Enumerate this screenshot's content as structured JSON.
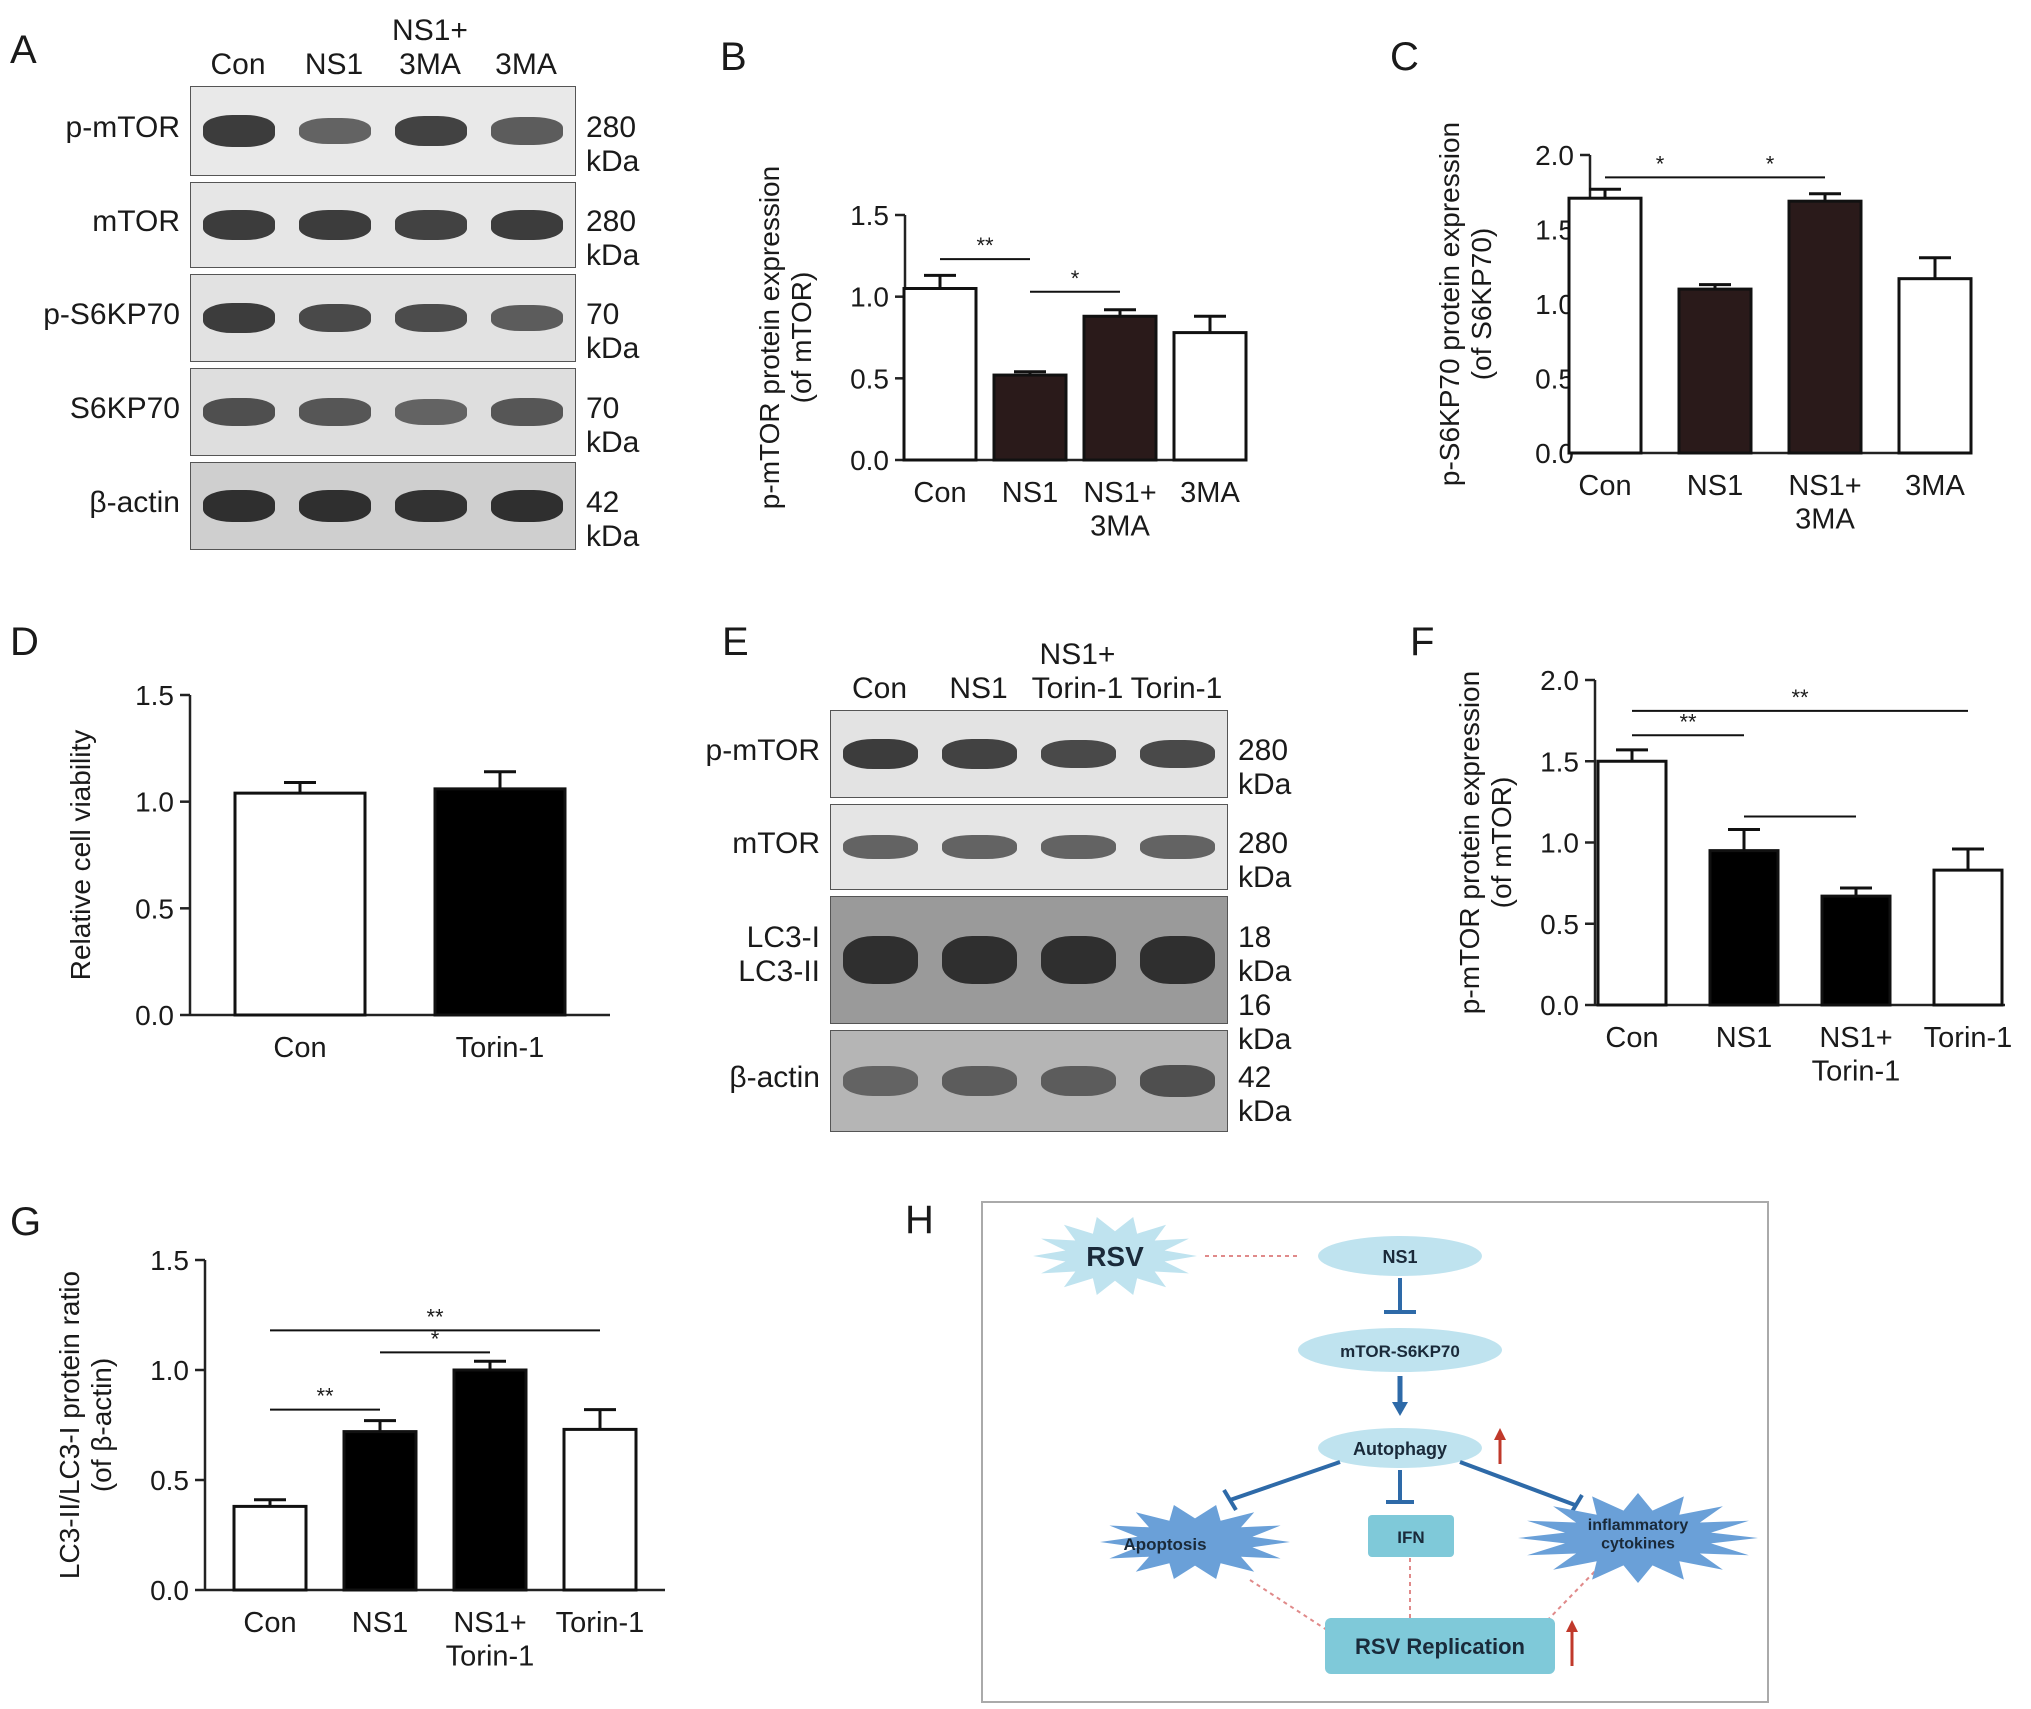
{
  "panels": {
    "A": {
      "label": "A",
      "lanes": [
        "Con",
        "NS1",
        "NS1+\n3MA",
        "3MA"
      ],
      "rows": [
        {
          "name": "p-mTOR",
          "kda": "280 kDa",
          "intensities": [
            0.85,
            0.55,
            0.8,
            0.6
          ],
          "bg": "#e9e9e9"
        },
        {
          "name": "mTOR",
          "kda": "280 kDa",
          "intensities": [
            0.85,
            0.85,
            0.8,
            0.85
          ],
          "bg": "#e6e6e6"
        },
        {
          "name": "p-S6KP70",
          "kda": "70 kDa",
          "intensities": [
            0.85,
            0.75,
            0.72,
            0.6
          ],
          "bg": "#e2e2e2"
        },
        {
          "name": "S6KP70",
          "kda": "70 kDa",
          "intensities": [
            0.7,
            0.65,
            0.55,
            0.65
          ],
          "bg": "#dedede"
        },
        {
          "name": "β-actin",
          "kda": "42 kDa",
          "intensities": [
            0.95,
            0.95,
            0.92,
            0.95
          ],
          "bg": "#cfcfcf"
        }
      ]
    },
    "E": {
      "label": "E",
      "lanes": [
        "Con",
        "NS1",
        "NS1+\nTorin-1",
        "Torin-1"
      ],
      "rows": [
        {
          "name": "p-mTOR",
          "kda": "280 kDa",
          "intensities": [
            0.85,
            0.8,
            0.75,
            0.75
          ],
          "bg": "#e3e3e3"
        },
        {
          "name": "mTOR",
          "kda": "280 kDa",
          "intensities": [
            0.55,
            0.55,
            0.55,
            0.55
          ],
          "bg": "#e5e5e5"
        },
        {
          "name": "LC3-I\nLC3-II",
          "kda": "18 kDa\n16 kDa",
          "intensities": [
            0.95,
            0.95,
            0.95,
            0.95
          ],
          "bg": "#9a9a9a"
        },
        {
          "name": "β-actin",
          "kda": "42 kDa",
          "intensities": [
            0.55,
            0.6,
            0.6,
            0.7
          ],
          "bg": "#b5b5b5"
        }
      ]
    },
    "H": {
      "label": "H",
      "nodes": {
        "rsv": "RSV",
        "ns1": "NS1",
        "mtor": "mTOR-S6KP70",
        "autophagy": "Autophagy",
        "apoptosis": "Apoptosis",
        "ifn": "IFN",
        "inflammatory": "inflammatory\ncytokines",
        "replication": "RSV Replication"
      },
      "colors": {
        "node_light": "#bfe3ef",
        "node_box": "#7fc9d9",
        "star": "#6aa0d8",
        "inhibit": "#2e6aa8",
        "up_arrow": "#c0392b",
        "dotted": "#e08a8a"
      }
    }
  },
  "chart_data": [
    {
      "id": "B",
      "type": "bar",
      "categories": [
        "Con",
        "NS1",
        "NS1+\n3MA",
        "3MA"
      ],
      "values": [
        1.05,
        0.52,
        0.88,
        0.78
      ],
      "errors": [
        0.08,
        0.02,
        0.04,
        0.1
      ],
      "fills": [
        "#ffffff",
        "#2a1a1a",
        "#2a1a1a",
        "#ffffff"
      ],
      "ylabel": "p-mTOR protein expression\n(of mTOR)",
      "ylim": [
        0,
        1.5
      ],
      "yticks": [
        "0.0",
        "0.5",
        "1.0",
        "1.5"
      ],
      "sig": [
        {
          "from": 0,
          "to": 1,
          "label": "**",
          "y": 1.23
        },
        {
          "from": 1,
          "to": 2,
          "label": "*",
          "y": 1.03
        }
      ]
    },
    {
      "id": "C",
      "type": "bar",
      "categories": [
        "Con",
        "NS1",
        "NS1+\n3MA",
        "3MA"
      ],
      "values": [
        1.71,
        1.1,
        1.69,
        1.17
      ],
      "errors": [
        0.06,
        0.03,
        0.05,
        0.14
      ],
      "fills": [
        "#ffffff",
        "#2a1a1a",
        "#2a1a1a",
        "#ffffff"
      ],
      "ylabel": "p-S6KP70 protein expression\n(of S6KP70)",
      "ylim": [
        0,
        2.0
      ],
      "yticks": [
        "0.0",
        "0.5",
        "1.0",
        "1.5",
        "2.0"
      ],
      "sig": [
        {
          "from": 0,
          "to": 1,
          "label": "*",
          "y": 1.85
        },
        {
          "from": 1,
          "to": 2,
          "label": "*",
          "y": 1.85
        }
      ]
    },
    {
      "id": "D",
      "type": "bar",
      "categories": [
        "Con",
        "Torin-1"
      ],
      "values": [
        1.04,
        1.06
      ],
      "errors": [
        0.05,
        0.08
      ],
      "fills": [
        "#ffffff",
        "#000000"
      ],
      "ylabel": "Relative cell viability",
      "ylim": [
        0,
        1.5
      ],
      "yticks": [
        "0.0",
        "0.5",
        "1.0",
        "1.5"
      ],
      "sig": []
    },
    {
      "id": "F",
      "type": "bar",
      "categories": [
        "Con",
        "NS1",
        "NS1+\nTorin-1",
        "Torin-1"
      ],
      "values": [
        1.5,
        0.95,
        0.67,
        0.83
      ],
      "errors": [
        0.07,
        0.13,
        0.05,
        0.13
      ],
      "fills": [
        "#ffffff",
        "#000000",
        "#000000",
        "#ffffff"
      ],
      "ylabel": "p-mTOR protein expression\n(of mTOR)",
      "ylim": [
        0,
        2.0
      ],
      "yticks": [
        "0.0",
        "0.5",
        "1.0",
        "1.5",
        "2.0"
      ],
      "sig": [
        {
          "from": 0,
          "to": 1,
          "label": "**",
          "y": 1.66
        },
        {
          "from": 1,
          "to": 2,
          "label": "",
          "y": 1.16
        },
        {
          "from": 0,
          "to": 3,
          "label": "**",
          "y": 1.81
        }
      ]
    },
    {
      "id": "G",
      "type": "bar",
      "categories": [
        "Con",
        "NS1",
        "NS1+\nTorin-1",
        "Torin-1"
      ],
      "values": [
        0.38,
        0.72,
        1.0,
        0.73
      ],
      "errors": [
        0.03,
        0.05,
        0.04,
        0.09
      ],
      "fills": [
        "#ffffff",
        "#000000",
        "#000000",
        "#ffffff"
      ],
      "ylabel": "LC3-II/LC3-I protein ratio\n(of β-actin)",
      "ylim": [
        0,
        1.5
      ],
      "yticks": [
        "0.0",
        "0.5",
        "1.0",
        "1.5"
      ],
      "sig": [
        {
          "from": 0,
          "to": 1,
          "label": "**",
          "y": 0.82
        },
        {
          "from": 1,
          "to": 2,
          "label": "*",
          "y": 1.08
        },
        {
          "from": 0,
          "to": 3,
          "label": "**",
          "y": 1.18
        }
      ]
    }
  ]
}
